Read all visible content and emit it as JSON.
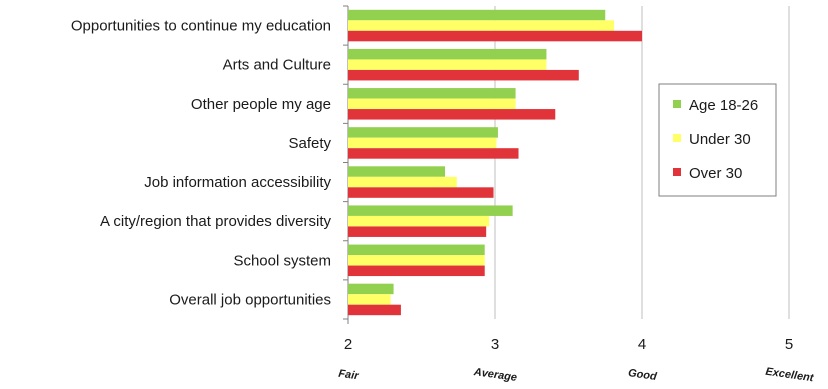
{
  "chart_data": {
    "type": "bar",
    "orientation": "horizontal",
    "categories": [
      "Opportunities to continue my education",
      "Arts and Culture",
      "Other people my age",
      "Safety",
      "Job information accessibility",
      "A city/region that provides diversity",
      "School system",
      "Overall job opportunities"
    ],
    "series": [
      {
        "name": "Age 18-26",
        "color": "#92d050",
        "values": [
          3.75,
          3.35,
          3.14,
          3.02,
          2.66,
          3.12,
          2.93,
          2.31
        ]
      },
      {
        "name": "Under 30",
        "color": "#ffff66",
        "values": [
          3.81,
          3.35,
          3.14,
          3.01,
          2.74,
          2.96,
          2.93,
          2.29
        ]
      },
      {
        "name": "Over 30",
        "color": "#e0343a",
        "values": [
          4.0,
          3.57,
          3.41,
          3.16,
          2.99,
          2.94,
          2.93,
          2.36
        ]
      }
    ],
    "xlim": [
      2,
      5
    ],
    "xticks": [
      "2",
      "3",
      "4",
      "5"
    ],
    "tick_values": [
      2,
      3,
      4,
      5
    ],
    "rating_labels": [
      "Fair",
      "Average",
      "Good",
      "Excellent"
    ],
    "grid": "vertical",
    "legend_position": "right"
  }
}
